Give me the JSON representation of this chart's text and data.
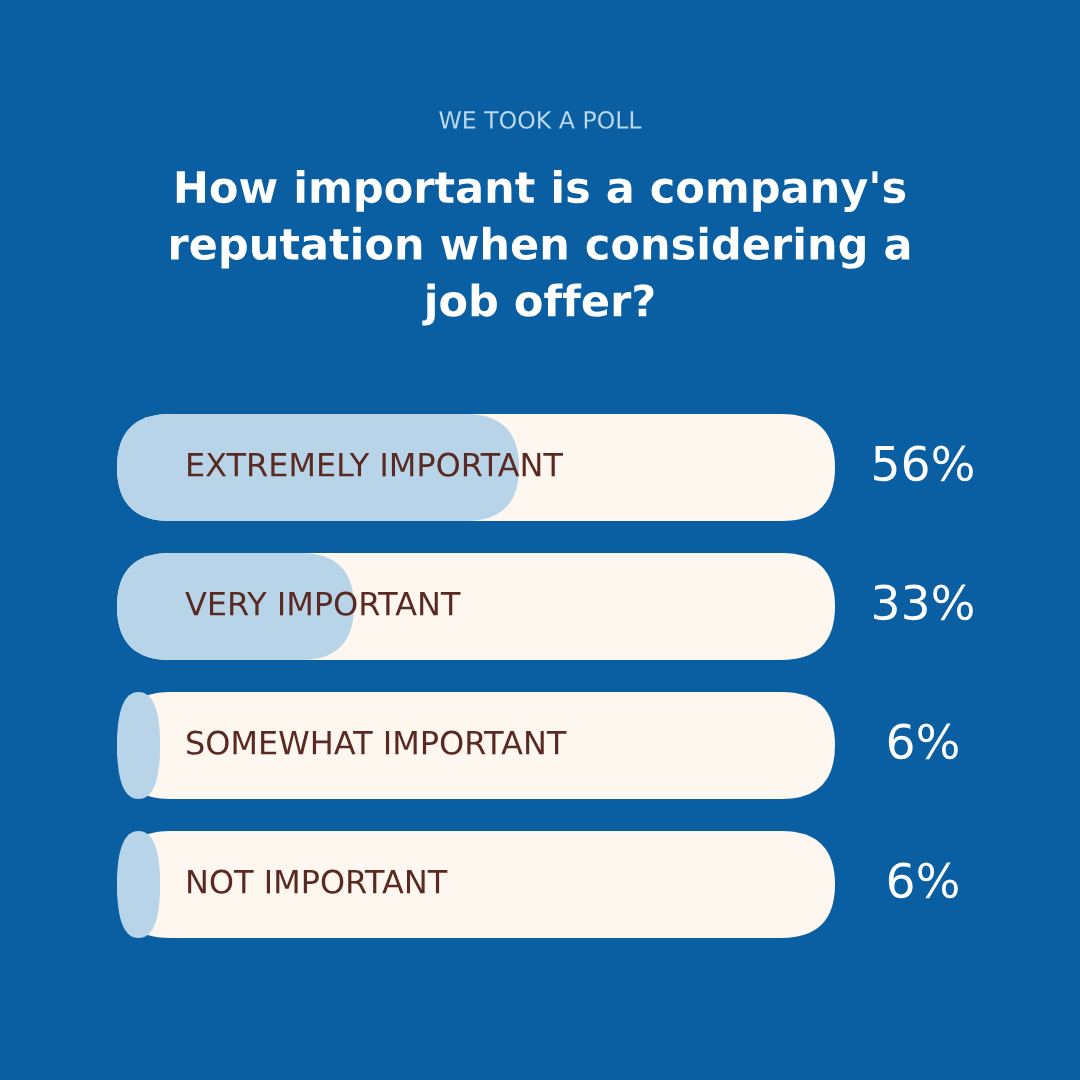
{
  "chart_data": {
    "type": "bar",
    "orientation": "horizontal",
    "subtitle": "WE TOOK A POLL",
    "title": "How important is a company's reputation when considering a job offer?",
    "categories": [
      "EXTREMELY IMPORTANT",
      "VERY IMPORTANT",
      "SOMEWHAT IMPORTANT",
      "NOT IMPORTANT"
    ],
    "values": [
      56,
      33,
      6,
      6
    ],
    "value_labels": [
      "56%",
      "33%",
      "6%",
      "6%"
    ],
    "color": "#b8d4e8",
    "xlim": [
      0,
      100
    ]
  }
}
